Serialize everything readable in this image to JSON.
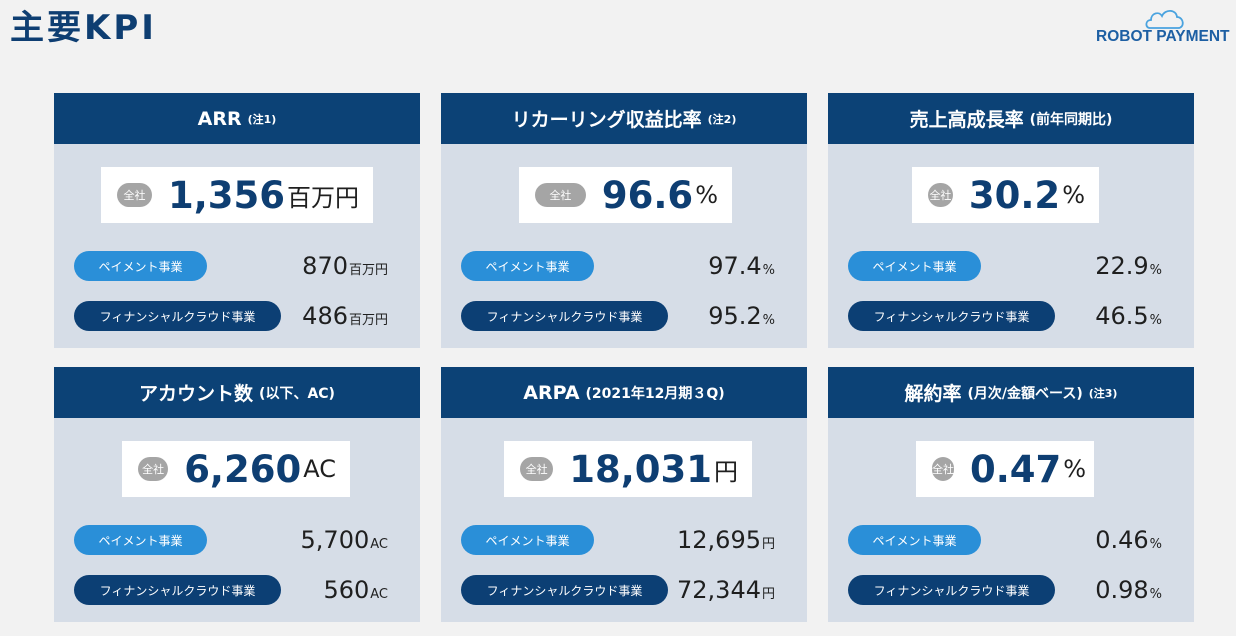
{
  "page": {
    "title": "主要KPI"
  },
  "logo": {
    "text": "ROBOT PAYMENT"
  },
  "cards": [
    {
      "title": "ARR",
      "note": "(注1)",
      "paren": "",
      "total": {
        "label": "全社",
        "value": "1,356",
        "unit": "百万円"
      },
      "segments": [
        {
          "label": "ペイメント事業",
          "value": "870",
          "unit": "百万円"
        },
        {
          "label": "フィナンシャルクラウド事業",
          "value": "486",
          "unit": "百万円"
        }
      ]
    },
    {
      "title": "リカーリング収益比率",
      "note": "(注2)",
      "paren": "",
      "total": {
        "label": "全社",
        "value": "96.6",
        "unit": "%"
      },
      "segments": [
        {
          "label": "ペイメント事業",
          "value": "97.4",
          "unit": "%"
        },
        {
          "label": "フィナンシャルクラウド事業",
          "value": "95.2",
          "unit": "%"
        }
      ]
    },
    {
      "title": "売上高成長率",
      "note": "",
      "paren": "(前年同期比)",
      "total": {
        "label": "全社",
        "value": "30.2",
        "unit": "%"
      },
      "segments": [
        {
          "label": "ペイメント事業",
          "value": "22.9",
          "unit": "%"
        },
        {
          "label": "フィナンシャルクラウド事業",
          "value": "46.5",
          "unit": "%"
        }
      ]
    },
    {
      "title": "アカウント数",
      "note": "",
      "paren": "(以下、AC)",
      "total": {
        "label": "全社",
        "value": "6,260",
        "unit": "AC"
      },
      "segments": [
        {
          "label": "ペイメント事業",
          "value": "5,700",
          "unit": "AC"
        },
        {
          "label": "フィナンシャルクラウド事業",
          "value": "560",
          "unit": "AC"
        }
      ]
    },
    {
      "title": "ARPA",
      "note": "",
      "paren": "(2021年12月期３Q)",
      "total": {
        "label": "全社",
        "value": "18,031",
        "unit": "円"
      },
      "segments": [
        {
          "label": "ペイメント事業",
          "value": "12,695",
          "unit": "円"
        },
        {
          "label": "フィナンシャルクラウド事業",
          "value": "72,344",
          "unit": "円"
        }
      ]
    },
    {
      "title": "解約率",
      "note": "(注3)",
      "paren": "(月次/金額ベース)",
      "total": {
        "label": "全社",
        "value": "0.47",
        "unit": "%"
      },
      "segments": [
        {
          "label": "ペイメント事業",
          "value": "0.46",
          "unit": "%"
        },
        {
          "label": "フィナンシャルクラウド事業",
          "value": "0.98",
          "unit": "%"
        }
      ]
    }
  ],
  "colors": {
    "header": "#0c4276",
    "card_bg": "#d6dde7",
    "accent_value": "#0e3e72",
    "pill_payment": "#2a8fd8",
    "pill_financial": "#0c3f74",
    "pill_total": "#a5a5a5"
  }
}
